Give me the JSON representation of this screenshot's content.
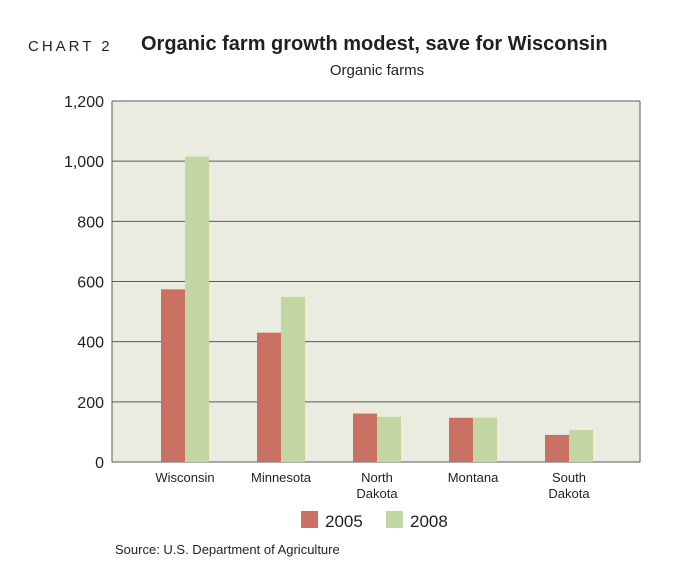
{
  "header": {
    "label": "CHART 2",
    "title": "Organic farm growth modest, save for Wisconsin",
    "subtitle": "Organic farms"
  },
  "source": "Source: U.S. Department of Agriculture",
  "colors": {
    "plot_bg": "#e9ecdf",
    "series_2005": "#c97162",
    "series_2008": "#c2d6a2",
    "grid": "#5a5a5a"
  },
  "chart_data": {
    "type": "bar",
    "title": "Organic farm growth modest, save for Wisconsin",
    "ylabel": "Organic farms",
    "categories": [
      [
        "Wisconsin"
      ],
      [
        "Minnesota"
      ],
      [
        "North",
        "Dakota"
      ],
      [
        "Montana"
      ],
      [
        "South",
        "Dakota"
      ]
    ],
    "series": [
      {
        "name": "2005",
        "values": [
          574,
          430,
          161,
          147,
          90
        ]
      },
      {
        "name": "2008",
        "values": [
          1015,
          548,
          150,
          147,
          106
        ]
      }
    ],
    "ylim": [
      0,
      1200
    ],
    "yticks": [
      0,
      200,
      400,
      600,
      800,
      1000,
      1200
    ],
    "ytick_labels": [
      "0",
      "200",
      "400",
      "600",
      "800",
      "1,000",
      "1,200"
    ],
    "grid": true,
    "legend_position": "bottom"
  }
}
